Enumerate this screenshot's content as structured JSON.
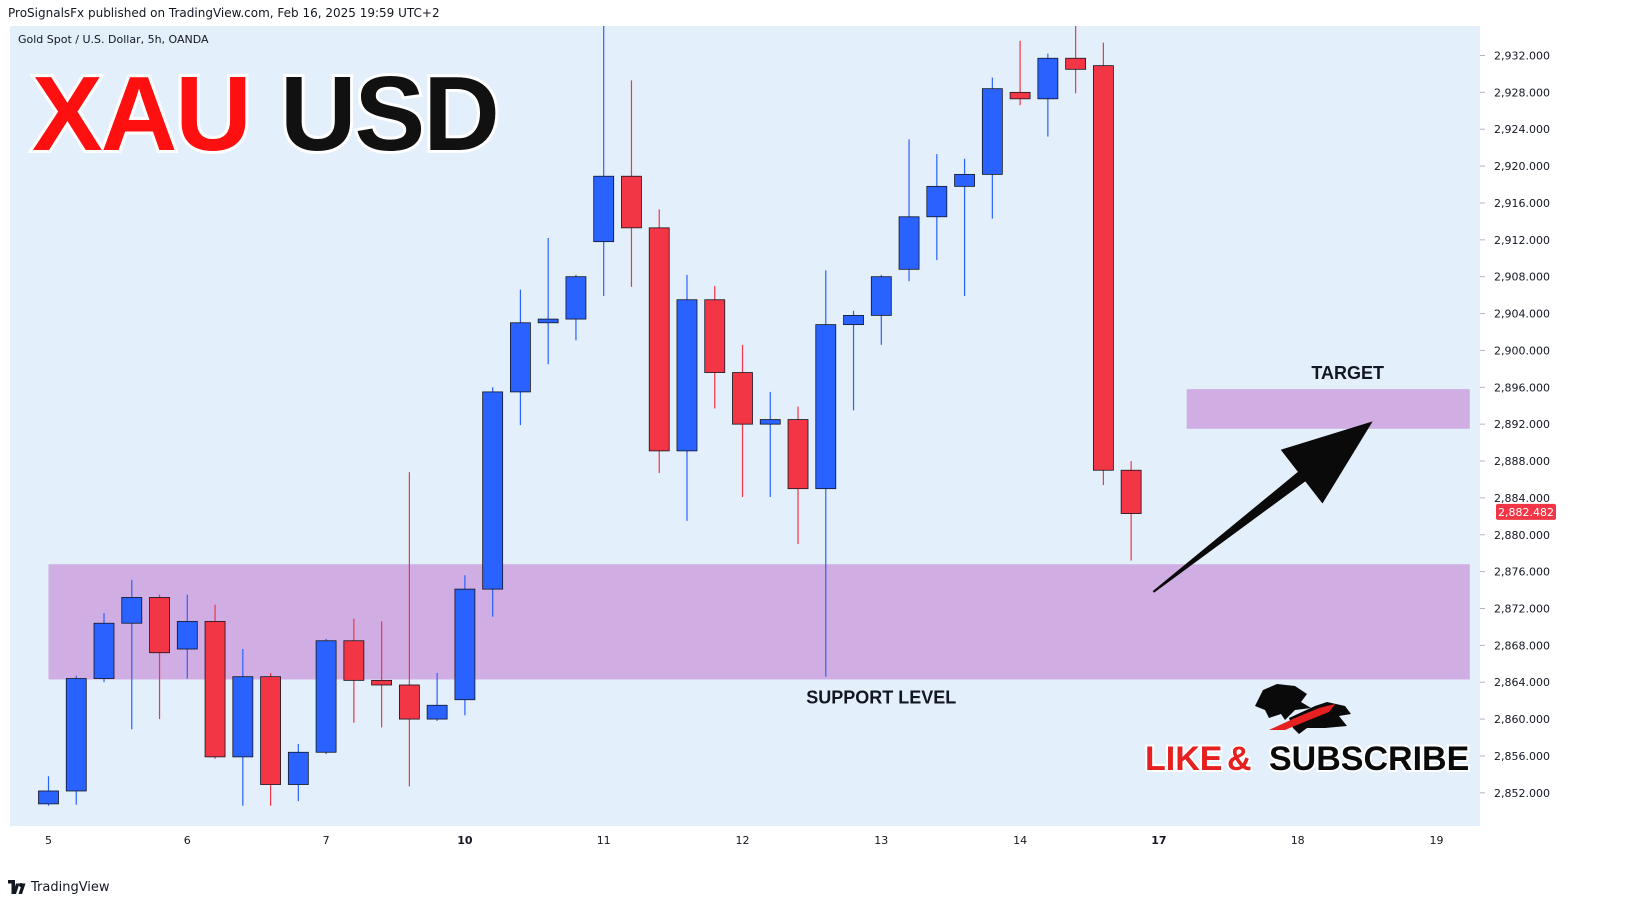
{
  "header": {
    "published_line": "ProSignalsFx published on TradingView.com, Feb 16, 2025 19:59 UTC+2"
  },
  "footer": {
    "brand": "TradingView",
    "logo_icon": "tradingview-logo-icon"
  },
  "colors": {
    "background": "#e3effa",
    "bull": "#2962ff",
    "bear": "#f23645",
    "zone": "#cfa9e0",
    "title_red": "#ff1010",
    "title_black": "#111111",
    "price_tag": "#f23645"
  },
  "chart_data": {
    "type": "candlestick",
    "symbol_line": "Gold Spot / U.S. Dollar, 5h, OANDA",
    "title_parts": [
      {
        "text": "XAU",
        "color": "#ff1010"
      },
      {
        "text": "USD",
        "color": "#111111"
      }
    ],
    "y_axis": {
      "min": 2848.4,
      "max": 2935.2,
      "ticks": [
        "2,932.000",
        "2,928.000",
        "2,924.000",
        "2,920.000",
        "2,916.000",
        "2,912.000",
        "2,908.000",
        "2,904.000",
        "2,900.000",
        "2,896.000",
        "2,892.000",
        "2,888.000",
        "2,884.000",
        "2,880.000",
        "2,876.000",
        "2,872.000",
        "2,868.000",
        "2,864.000",
        "2,860.000",
        "2,856.000",
        "2,852.000"
      ],
      "tick_values": [
        2932,
        2928,
        2924,
        2920,
        2916,
        2912,
        2908,
        2904,
        2900,
        2896,
        2892,
        2888,
        2884,
        2880,
        2876,
        2872,
        2868,
        2864,
        2860,
        2856,
        2852
      ]
    },
    "x_axis": {
      "labels": [
        {
          "text": "5",
          "bar": 0,
          "bold": false
        },
        {
          "text": "6",
          "bar": 5,
          "bold": false
        },
        {
          "text": "7",
          "bar": 10,
          "bold": false
        },
        {
          "text": "10",
          "bar": 15,
          "bold": true
        },
        {
          "text": "11",
          "bar": 20,
          "bold": false
        },
        {
          "text": "12",
          "bar": 25,
          "bold": false
        },
        {
          "text": "13",
          "bar": 30,
          "bold": false
        },
        {
          "text": "14",
          "bar": 35,
          "bold": false
        },
        {
          "text": "17",
          "bar": 40,
          "bold": true
        },
        {
          "text": "18",
          "bar": 45,
          "bold": false
        },
        {
          "text": "19",
          "bar": 50,
          "bold": false
        }
      ]
    },
    "candles": [
      {
        "o": 2850.8,
        "h": 2853.8,
        "l": 2850.6,
        "c": 2852.2
      },
      {
        "o": 2852.2,
        "h": 2864.7,
        "l": 2850.7,
        "c": 2864.4
      },
      {
        "o": 2864.4,
        "h": 2871.5,
        "l": 2864.0,
        "c": 2870.4
      },
      {
        "o": 2870.4,
        "h": 2875.1,
        "l": 2858.9,
        "c": 2873.2
      },
      {
        "o": 2873.2,
        "h": 2873.5,
        "l": 2860.0,
        "c": 2867.2
      },
      {
        "o": 2867.6,
        "h": 2873.5,
        "l": 2864.4,
        "c": 2870.6
      },
      {
        "o": 2870.6,
        "h": 2872.4,
        "l": 2855.7,
        "c": 2855.9
      },
      {
        "o": 2855.9,
        "h": 2867.6,
        "l": 2850.6,
        "c": 2864.6
      },
      {
        "o": 2864.6,
        "h": 2865.0,
        "l": 2850.6,
        "c": 2852.9
      },
      {
        "o": 2852.9,
        "h": 2857.3,
        "l": 2851.1,
        "c": 2856.4
      },
      {
        "o": 2856.4,
        "h": 2868.7,
        "l": 2856.2,
        "c": 2868.5
      },
      {
        "o": 2868.5,
        "h": 2870.9,
        "l": 2859.6,
        "c": 2864.2
      },
      {
        "o": 2864.2,
        "h": 2870.6,
        "l": 2859.1,
        "c": 2863.7
      },
      {
        "o": 2863.7,
        "h": 2886.8,
        "l": 2852.7,
        "c": 2860.0
      },
      {
        "o": 2860.0,
        "h": 2865.0,
        "l": 2859.8,
        "c": 2861.5
      },
      {
        "o": 2862.1,
        "h": 2875.6,
        "l": 2860.4,
        "c": 2874.1
      },
      {
        "o": 2874.1,
        "h": 2896.0,
        "l": 2871.1,
        "c": 2895.5
      },
      {
        "o": 2895.5,
        "h": 2906.6,
        "l": 2891.9,
        "c": 2903.0
      },
      {
        "o": 2903.0,
        "h": 2912.2,
        "l": 2898.5,
        "c": 2903.4
      },
      {
        "o": 2903.4,
        "h": 2908.2,
        "l": 2901.1,
        "c": 2908.0
      },
      {
        "o": 2911.8,
        "h": 2935.2,
        "l": 2905.9,
        "c": 2918.9
      },
      {
        "o": 2918.9,
        "h": 2929.3,
        "l": 2906.9,
        "c": 2913.3
      },
      {
        "o": 2913.3,
        "h": 2915.3,
        "l": 2886.7,
        "c": 2889.1
      },
      {
        "o": 2889.1,
        "h": 2908.2,
        "l": 2881.5,
        "c": 2905.5
      },
      {
        "o": 2905.5,
        "h": 2907.0,
        "l": 2893.7,
        "c": 2897.6
      },
      {
        "o": 2897.6,
        "h": 2900.6,
        "l": 2884.1,
        "c": 2892.0
      },
      {
        "o": 2892.0,
        "h": 2895.5,
        "l": 2884.1,
        "c": 2892.5
      },
      {
        "o": 2892.5,
        "h": 2893.9,
        "l": 2879.0,
        "c": 2885.0
      },
      {
        "o": 2885.0,
        "h": 2908.7,
        "l": 2864.6,
        "c": 2902.8
      },
      {
        "o": 2902.8,
        "h": 2904.3,
        "l": 2893.5,
        "c": 2903.8
      },
      {
        "o": 2903.8,
        "h": 2908.2,
        "l": 2900.6,
        "c": 2908.0
      },
      {
        "o": 2908.8,
        "h": 2922.9,
        "l": 2907.5,
        "c": 2914.5
      },
      {
        "o": 2914.5,
        "h": 2921.3,
        "l": 2909.8,
        "c": 2917.8
      },
      {
        "o": 2917.8,
        "h": 2920.8,
        "l": 2905.9,
        "c": 2919.1
      },
      {
        "o": 2919.1,
        "h": 2929.6,
        "l": 2914.3,
        "c": 2928.4
      },
      {
        "o": 2928.0,
        "h": 2933.6,
        "l": 2926.6,
        "c": 2927.3
      },
      {
        "o": 2927.3,
        "h": 2932.2,
        "l": 2923.2,
        "c": 2931.7
      },
      {
        "o": 2931.7,
        "h": 2935.2,
        "l": 2927.9,
        "c": 2930.5
      },
      {
        "o": 2930.9,
        "h": 2933.4,
        "l": 2885.4,
        "c": 2887.0
      },
      {
        "o": 2887.0,
        "h": 2888.0,
        "l": 2877.2,
        "c": 2882.3
      }
    ],
    "current_price": {
      "label": "2,882.482",
      "value": 2882.482
    },
    "zones": [
      {
        "name": "support",
        "y_top": 2876.8,
        "y_bottom": 2864.3,
        "bar_start": 0,
        "bar_end": 51.2,
        "label": "SUPPORT LEVEL",
        "label_bar": 30
      },
      {
        "name": "target",
        "y_top": 2895.8,
        "y_bottom": 2891.5,
        "bar_start": 41,
        "bar_end": 51.2,
        "label": "TARGET",
        "label_bar": 46.8
      }
    ],
    "arrow": {
      "from": {
        "bar": 39.8,
        "y": 2873.8
      },
      "to": {
        "bar": 47.7,
        "y": 2892.3
      }
    }
  },
  "cta": {
    "like": "LIKE",
    "amp": "&",
    "subscribe": "SUBSCRIBE",
    "logo_icon": "bull-bear-logo-icon"
  }
}
